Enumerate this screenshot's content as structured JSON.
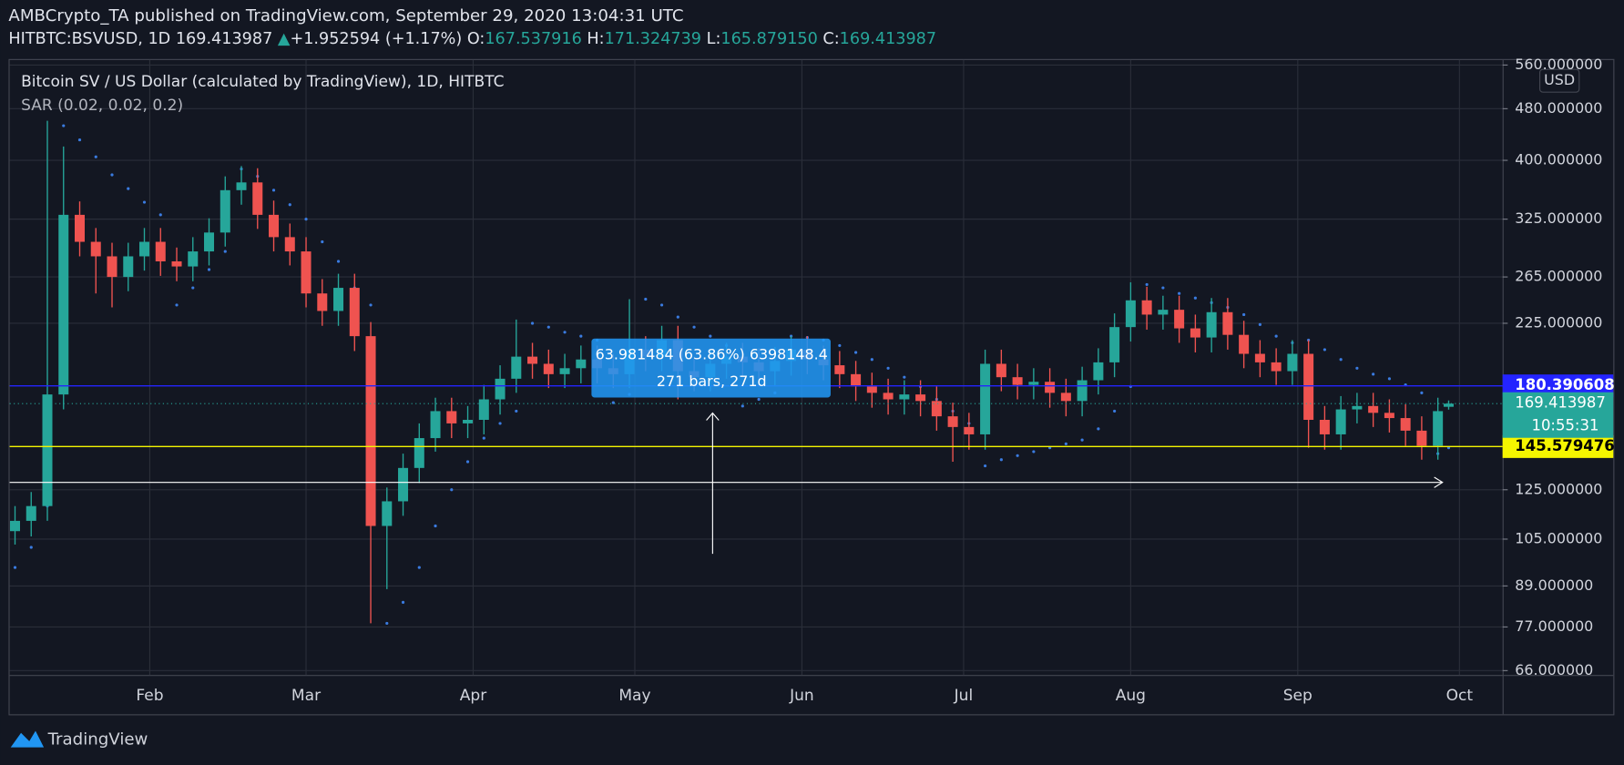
{
  "header": {
    "line1": "AMBCrypto_TA published on TradingView.com, September 29, 2020 13:04:31 UTC",
    "symbol": "HITBTC:BSVUSD, 1D",
    "close": "169.413987",
    "arrow": "▲",
    "change": "+1.952594 (+1.17%)",
    "o_label": "O:",
    "open": "167.537916",
    "h_label": "H:",
    "high": "171.324739",
    "l_label": "L:",
    "low": "165.879150",
    "c_label": "C:"
  },
  "footer": {
    "brand": "TradingView"
  },
  "chart_data": {
    "type": "candlestick",
    "title": "Bitcoin SV / US Dollar (calculated by TradingView), 1D, HITBTC",
    "indicator": "SAR (0.02, 0.02, 0.2)",
    "currency": "USD",
    "countdown": "10:55:31",
    "up_color": "#26a69a",
    "down_color": "#ef5350",
    "sar_color": "#3a7be0",
    "x": [
      7,
      10,
      13,
      16,
      19,
      22,
      25,
      28,
      31,
      34,
      37,
      40,
      43,
      46,
      49,
      52,
      55,
      58,
      61,
      64,
      67,
      70,
      73,
      76,
      79,
      82,
      85,
      88,
      91,
      94,
      97,
      100,
      103,
      106,
      109,
      112,
      115,
      118,
      121,
      124,
      127,
      130,
      133,
      136,
      139,
      142,
      145,
      148,
      151,
      154,
      157,
      160,
      163,
      166,
      169,
      172,
      175,
      178,
      181,
      184,
      187,
      190,
      193,
      196,
      199,
      202,
      205,
      208,
      211,
      214,
      217,
      220,
      223,
      226,
      229,
      232,
      235,
      238,
      241,
      244,
      247,
      250,
      253,
      256,
      259,
      262,
      265,
      268,
      271,
      273
    ],
    "ohlc": [
      [
        108,
        118,
        103,
        112
      ],
      [
        112,
        124,
        106,
        118
      ],
      [
        118,
        460,
        112,
        175
      ],
      [
        175,
        420,
        166,
        330
      ],
      [
        330,
        346,
        285,
        300
      ],
      [
        300,
        315,
        250,
        285
      ],
      [
        285,
        299,
        238,
        265
      ],
      [
        265,
        299,
        252,
        285
      ],
      [
        285,
        315,
        271,
        300
      ],
      [
        300,
        315,
        266,
        280
      ],
      [
        280,
        294,
        261,
        275
      ],
      [
        275,
        305,
        261,
        290
      ],
      [
        290,
        326,
        276,
        310
      ],
      [
        310,
        378,
        295,
        360
      ],
      [
        360,
        392,
        342,
        370
      ],
      [
        370,
        389,
        314,
        330
      ],
      [
        330,
        347,
        290,
        305
      ],
      [
        305,
        320,
        276,
        290
      ],
      [
        290,
        305,
        238,
        250
      ],
      [
        250,
        263,
        223,
        235
      ],
      [
        235,
        268,
        223,
        255
      ],
      [
        255,
        268,
        204,
        215
      ],
      [
        215,
        226,
        78,
        110
      ],
      [
        110,
        126,
        88,
        120
      ],
      [
        120,
        142,
        114,
        135
      ],
      [
        135,
        158,
        128,
        150
      ],
      [
        150,
        173,
        143,
        165
      ],
      [
        165,
        173,
        150,
        158
      ],
      [
        158,
        168,
        150,
        160
      ],
      [
        160,
        181,
        152,
        172
      ],
      [
        172,
        194,
        163,
        185
      ],
      [
        185,
        228,
        176,
        200
      ],
      [
        200,
        210,
        185,
        195
      ],
      [
        195,
        205,
        179,
        188
      ],
      [
        188,
        202,
        179,
        192
      ],
      [
        192,
        208,
        182,
        198
      ],
      [
        198,
        208,
        182,
        192
      ],
      [
        192,
        202,
        179,
        188
      ],
      [
        188,
        245,
        179,
        205
      ],
      [
        205,
        215,
        190,
        200
      ],
      [
        200,
        223,
        190,
        212
      ],
      [
        212,
        223,
        172,
        190
      ],
      [
        190,
        200,
        177,
        186
      ],
      [
        186,
        205,
        177,
        195
      ],
      [
        195,
        210,
        185,
        200
      ],
      [
        200,
        210,
        186,
        196
      ],
      [
        196,
        206,
        180,
        190
      ],
      [
        190,
        207,
        180,
        197
      ],
      [
        197,
        215,
        187,
        205
      ],
      [
        205,
        215,
        188,
        198
      ],
      [
        198,
        208,
        184,
        194
      ],
      [
        194,
        204,
        179,
        188
      ],
      [
        188,
        197,
        171,
        180
      ],
      [
        180,
        189,
        167,
        176
      ],
      [
        176,
        185,
        163,
        172
      ],
      [
        172,
        184,
        163,
        175
      ],
      [
        175,
        184,
        162,
        171
      ],
      [
        171,
        180,
        154,
        162
      ],
      [
        162,
        170,
        138,
        156
      ],
      [
        156,
        164,
        144,
        152
      ],
      [
        152,
        205,
        144,
        195
      ],
      [
        195,
        205,
        177,
        186
      ],
      [
        186,
        195,
        172,
        181
      ],
      [
        181,
        192,
        172,
        183
      ],
      [
        183,
        192,
        167,
        176
      ],
      [
        176,
        185,
        162,
        171
      ],
      [
        171,
        193,
        162,
        184
      ],
      [
        184,
        206,
        175,
        196
      ],
      [
        196,
        233,
        186,
        222
      ],
      [
        222,
        260,
        211,
        244
      ],
      [
        244,
        256,
        220,
        232
      ],
      [
        232,
        248,
        220,
        236
      ],
      [
        236,
        248,
        210,
        221
      ],
      [
        221,
        232,
        203,
        214
      ],
      [
        214,
        246,
        203,
        234
      ],
      [
        234,
        246,
        205,
        216
      ],
      [
        216,
        227,
        192,
        202
      ],
      [
        202,
        212,
        186,
        196
      ],
      [
        196,
        206,
        181,
        190
      ],
      [
        190,
        212,
        181,
        202
      ],
      [
        202,
        212,
        145,
        160
      ],
      [
        160,
        168,
        144,
        152
      ],
      [
        152,
        174,
        144,
        166
      ],
      [
        166,
        176,
        158,
        168
      ],
      [
        168,
        176,
        156,
        164
      ],
      [
        164,
        172,
        153,
        161
      ],
      [
        161,
        169,
        146,
        154
      ],
      [
        154,
        162,
        139,
        146
      ],
      [
        146,
        173,
        139,
        165
      ],
      [
        167.537916,
        171.324739,
        165.87915,
        169.413987
      ]
    ],
    "sar": [
      95,
      102,
      118,
      452,
      430,
      405,
      380,
      362,
      345,
      330,
      240,
      255,
      272,
      290,
      388,
      378,
      360,
      342,
      325,
      300,
      280,
      255,
      240,
      78,
      84,
      95,
      110,
      125,
      138,
      150,
      158,
      165,
      225,
      222,
      218,
      215,
      212,
      170,
      175,
      245,
      240,
      230,
      222,
      215,
      208,
      168,
      172,
      176,
      215,
      214,
      212,
      208,
      203,
      198,
      192,
      186,
      180,
      172,
      165,
      158,
      136,
      139,
      141,
      143,
      145,
      147,
      149,
      155,
      165,
      180,
      258,
      255,
      250,
      246,
      242,
      238,
      232,
      224,
      215,
      210,
      212,
      205,
      198,
      192,
      188,
      185,
      181,
      176,
      142,
      145
    ],
    "xlim": [
      6,
      283
    ],
    "xticks": [
      {
        "value": 32,
        "label": "Feb"
      },
      {
        "value": 61,
        "label": "Mar"
      },
      {
        "value": 92,
        "label": "Apr"
      },
      {
        "value": 122,
        "label": "May"
      },
      {
        "value": 153,
        "label": "Jun"
      },
      {
        "value": 183,
        "label": "Jul"
      },
      {
        "value": 214,
        "label": "Aug"
      },
      {
        "value": 245,
        "label": "Sep"
      },
      {
        "value": 275,
        "label": "Oct"
      }
    ],
    "ylim": [
      65,
      570
    ],
    "log_y": true,
    "grid": true,
    "yticks": [
      {
        "value": 560,
        "label": "560.000000"
      },
      {
        "value": 480,
        "label": "480.000000"
      },
      {
        "value": 400,
        "label": "400.000000"
      },
      {
        "value": 325,
        "label": "325.000000"
      },
      {
        "value": 265,
        "label": "265.000000"
      },
      {
        "value": 225,
        "label": "225.000000"
      },
      {
        "value": 125,
        "label": "125.000000"
      },
      {
        "value": 105,
        "label": "105.000000"
      },
      {
        "value": 89,
        "label": "89.000000"
      },
      {
        "value": 77,
        "label": "77.000000"
      },
      {
        "value": 66,
        "label": "66.000000"
      }
    ],
    "hlines": [
      {
        "value": 180.390608,
        "color": "#2424ff",
        "text_color": "#ffffff"
      },
      {
        "value": 145.579476,
        "color": "#f5f500",
        "text_color": "#000000"
      }
    ],
    "trend_arrow": {
      "value": 128.3,
      "color": "#ffffff"
    },
    "measure": {
      "text": "63.981484 (63.86%) 6398148.4",
      "bars": "271 bars, 271d"
    }
  }
}
